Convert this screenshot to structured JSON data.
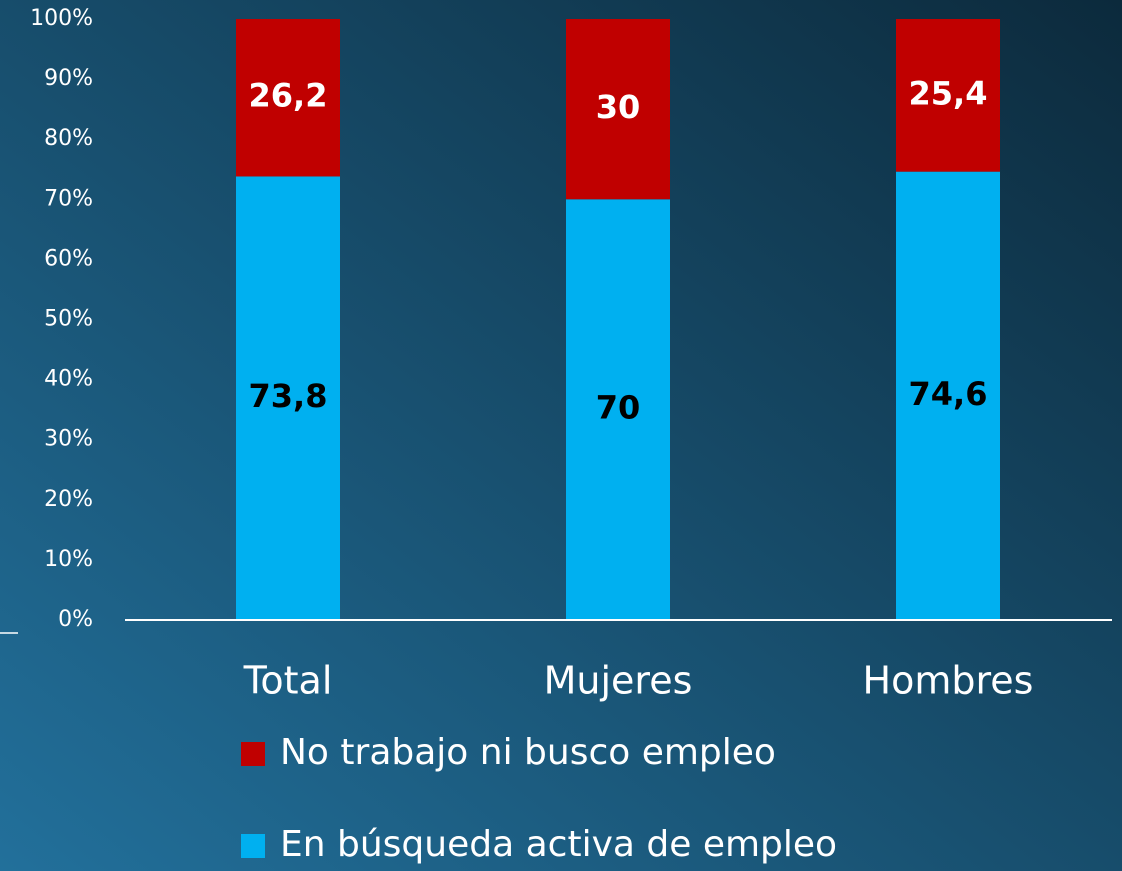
{
  "chart_data": {
    "type": "stacked_bar",
    "categories": [
      "Total",
      "Mujeres",
      "Hombres"
    ],
    "series": [
      {
        "name": "En búsqueda activa de empleo",
        "color": "#00b0f0",
        "values": [
          73.8,
          70,
          74.6
        ],
        "value_labels": [
          "73,8",
          "70",
          "74,6"
        ]
      },
      {
        "name": "No trabajo ni busco empleo",
        "color": "#c00000",
        "values": [
          26.2,
          30,
          25.4
        ],
        "value_labels": [
          "26,2",
          "30",
          "25,4"
        ]
      }
    ],
    "ylim": [
      0,
      100
    ],
    "yticks": [
      {
        "value": 0,
        "label": "0%"
      },
      {
        "value": 10,
        "label": "10%"
      },
      {
        "value": 20,
        "label": "20%"
      },
      {
        "value": 30,
        "label": "30%"
      },
      {
        "value": 40,
        "label": "40%"
      },
      {
        "value": 50,
        "label": "50%"
      },
      {
        "value": 60,
        "label": "60%"
      },
      {
        "value": 70,
        "label": "70%"
      },
      {
        "value": 80,
        "label": "80%"
      },
      {
        "value": 90,
        "label": "90%"
      },
      {
        "value": 100,
        "label": "100%"
      }
    ]
  }
}
